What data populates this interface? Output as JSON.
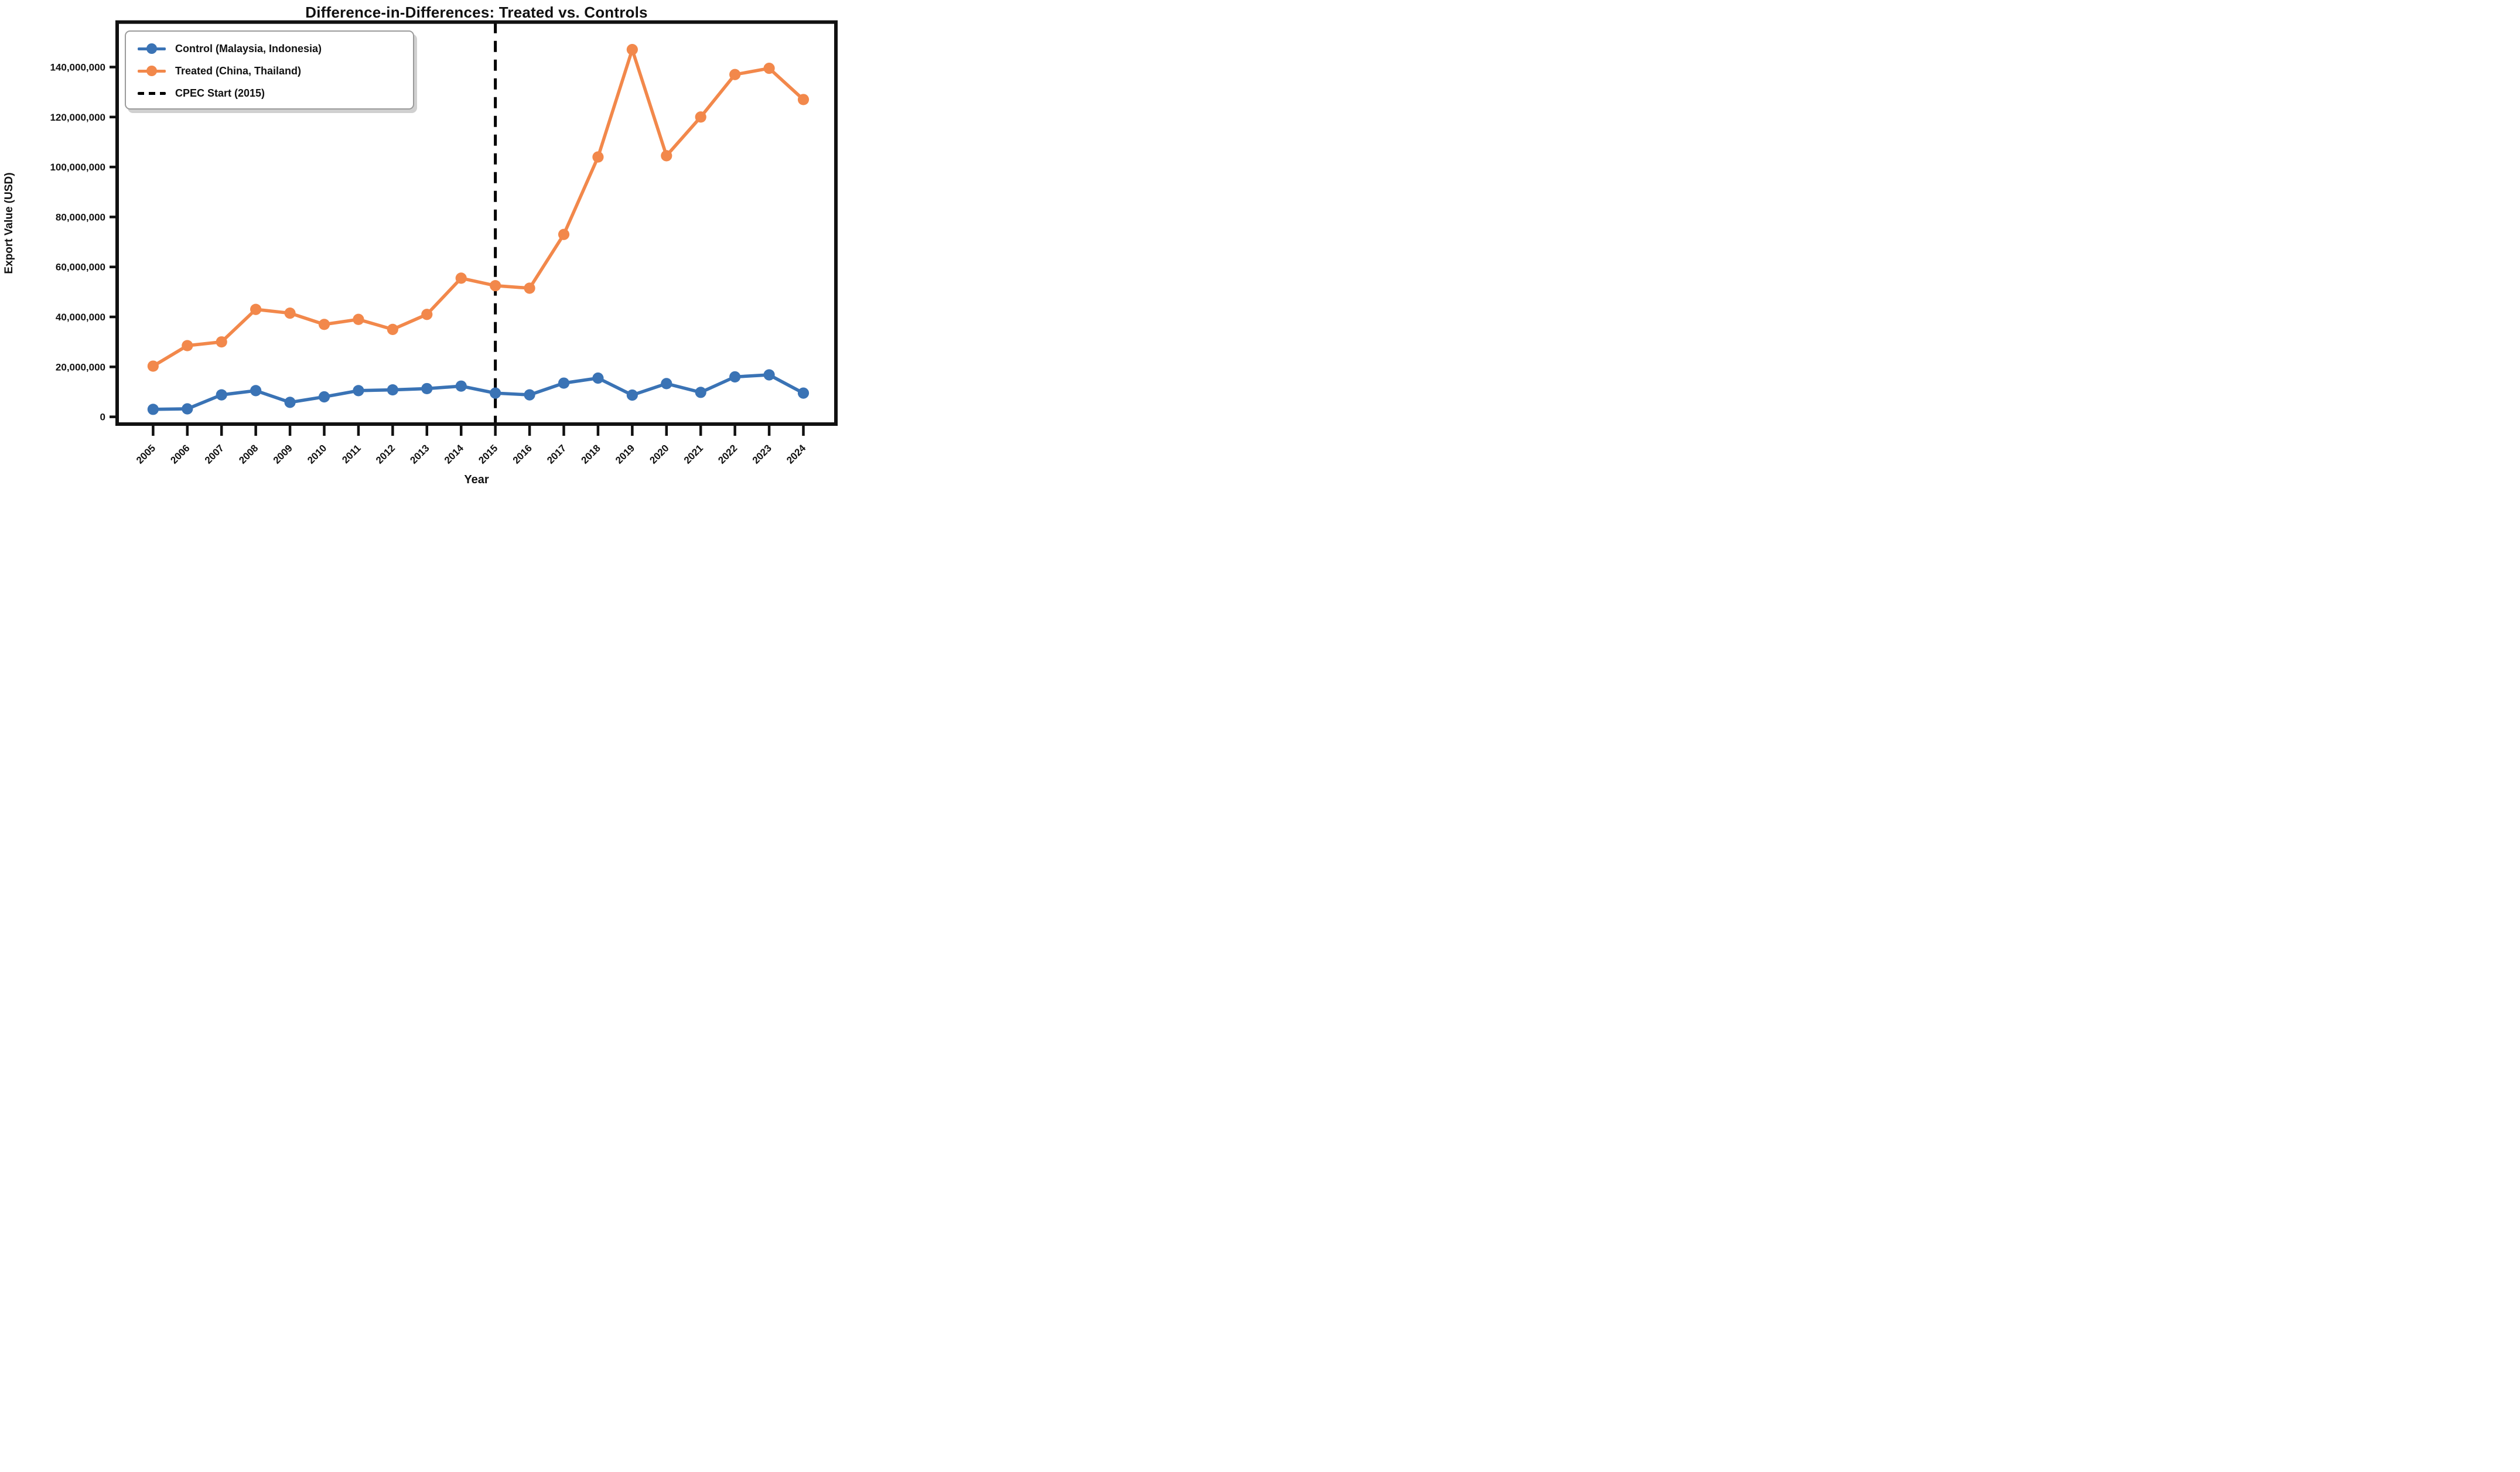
{
  "chart_data": {
    "type": "line",
    "title": "Difference-in-Differences: Treated vs. Controls",
    "xlabel": "Year",
    "ylabel": "Export Value (USD)",
    "grid": false,
    "legend_position": "upper left",
    "x": [
      2005,
      2006,
      2007,
      2008,
      2009,
      2010,
      2011,
      2012,
      2013,
      2014,
      2015,
      2016,
      2017,
      2018,
      2019,
      2020,
      2021,
      2022,
      2023,
      2024
    ],
    "x_tick_labels": [
      "2005",
      "2006",
      "2007",
      "2008",
      "2009",
      "2010",
      "2011",
      "2012",
      "2013",
      "2014",
      "2015",
      "2016",
      "2017",
      "2018",
      "2019",
      "2020",
      "2021",
      "2022",
      "2023",
      "2024"
    ],
    "series": [
      {
        "name": "Control (Malaysia, Indonesia)",
        "color": "#3a73b5",
        "values": [
          3000000,
          3200000,
          8800000,
          10500000,
          5800000,
          8000000,
          10500000,
          10800000,
          11300000,
          12300000,
          9500000,
          8800000,
          13500000,
          15500000,
          8700000,
          13300000,
          9800000,
          16000000,
          16800000,
          9500000
        ]
      },
      {
        "name": "Treated (China, Thailand)",
        "color": "#f2884b",
        "values": [
          20300000,
          28500000,
          30000000,
          43000000,
          41500000,
          37000000,
          39000000,
          35000000,
          41000000,
          55500000,
          52500000,
          51500000,
          73000000,
          104000000,
          147000000,
          104500000,
          120000000,
          137000000,
          139500000,
          127000000
        ]
      }
    ],
    "vline": {
      "x": 2015,
      "label": "CPEC Start (2015)",
      "color": "#000000",
      "style": "dashed"
    },
    "xlim": [
      2003.95,
      2024.95
    ],
    "ylim": [
      -2900000,
      158000000
    ],
    "yticks": [
      0,
      20000000,
      40000000,
      60000000,
      80000000,
      100000000,
      120000000,
      140000000
    ],
    "ytick_labels": [
      "0",
      "20,000,000",
      "40,000,000",
      "60,000,000",
      "80,000,000",
      "100,000,000",
      "120,000,000",
      "140,000,000"
    ],
    "axis_color": "#111111",
    "background_color": "#ffffff"
  }
}
